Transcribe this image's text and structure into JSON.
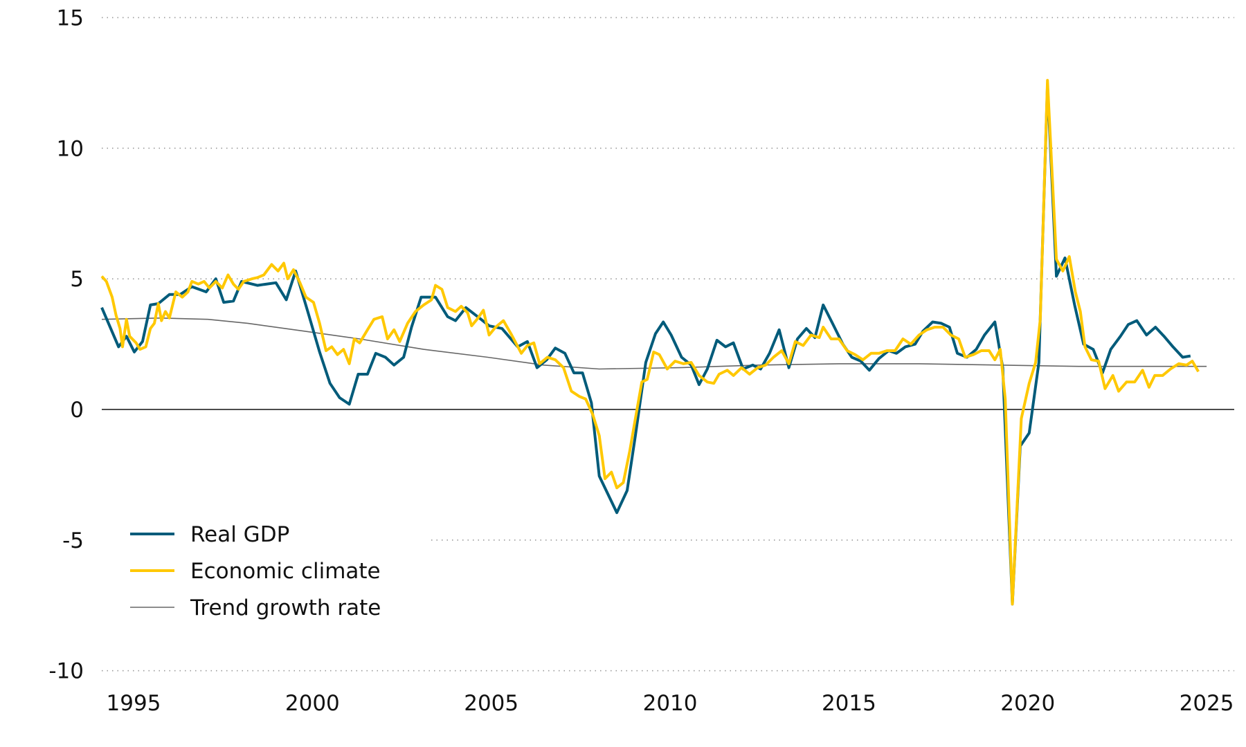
{
  "chart_data": {
    "type": "line",
    "title": "",
    "xlabel": "",
    "ylabel": "",
    "xlim": [
      1994.1,
      2025.8
    ],
    "ylim": [
      -10,
      15
    ],
    "x_ticks": [
      1995,
      2000,
      2005,
      2010,
      2015,
      2020,
      2025
    ],
    "x_tick_labels": [
      "1995",
      "2000",
      "2005",
      "2010",
      "2015",
      "2020",
      "2025"
    ],
    "y_ticks": [
      15,
      10,
      5,
      0,
      -5,
      -10
    ],
    "y_tick_labels": [
      "15",
      "10",
      "5",
      "0",
      "-5",
      "-10"
    ],
    "grid": "horizontal dotted",
    "legend_position": "bottom-left",
    "series": [
      {
        "name": "Real GDP",
        "color": "#005b7a",
        "x": [
          1994.11,
          1994.58,
          1994.8,
          1995.02,
          1995.25,
          1995.47,
          1995.69,
          1996.0,
          1996.3,
          1996.63,
          1997.03,
          1997.3,
          1997.52,
          1997.79,
          1998.02,
          1998.46,
          1998.98,
          1999.27,
          1999.53,
          1999.87,
          2000.2,
          2000.49,
          2000.76,
          2001.03,
          2001.28,
          2001.54,
          2001.77,
          2002.04,
          2002.28,
          2002.55,
          2002.77,
          2003.04,
          2003.44,
          2003.78,
          2004.0,
          2004.29,
          2004.67,
          2004.94,
          2005.3,
          2005.74,
          2006.01,
          2006.28,
          2006.55,
          2006.79,
          2007.06,
          2007.31,
          2007.55,
          2007.8,
          2008.02,
          2008.51,
          2008.8,
          2009.03,
          2009.32,
          2009.59,
          2009.81,
          2010.03,
          2010.32,
          2010.59,
          2010.81,
          2011.04,
          2011.31,
          2011.55,
          2011.77,
          2012.04,
          2012.31,
          2012.53,
          2012.78,
          2013.05,
          2013.32,
          2013.56,
          2013.81,
          2014.05,
          2014.28,
          2014.54,
          2014.83,
          2015.08,
          2015.33,
          2015.57,
          2015.84,
          2016.11,
          2016.33,
          2016.58,
          2016.85,
          2017.07,
          2017.34,
          2017.58,
          2017.81,
          2018.03,
          2018.3,
          2018.56,
          2018.79,
          2019.08,
          2019.3,
          2019.57,
          2019.79,
          2020.04,
          2020.31,
          2020.55,
          2020.8,
          2021.04,
          2021.31,
          2021.56,
          2021.83,
          2022.09,
          2022.32,
          2022.59,
          2022.81,
          2023.05,
          2023.32,
          2023.57,
          2023.81,
          2024.06,
          2024.33,
          2024.55
        ],
        "values": [
          3.9,
          2.4,
          2.8,
          2.2,
          2.6,
          4.0,
          4.05,
          4.4,
          4.4,
          4.7,
          4.5,
          5.0,
          4.1,
          4.15,
          4.9,
          4.75,
          4.85,
          4.2,
          5.3,
          3.75,
          2.2,
          1.0,
          0.45,
          0.2,
          1.35,
          1.35,
          2.15,
          2.0,
          1.7,
          2.0,
          3.15,
          4.3,
          4.3,
          3.55,
          3.4,
          3.9,
          3.5,
          3.2,
          3.1,
          2.4,
          2.6,
          1.6,
          1.9,
          2.35,
          2.15,
          1.4,
          1.4,
          0.25,
          -2.55,
          -3.95,
          -3.1,
          -1.0,
          1.8,
          2.9,
          3.35,
          2.85,
          2.0,
          1.7,
          0.95,
          1.55,
          2.65,
          2.4,
          2.55,
          1.55,
          1.7,
          1.55,
          2.15,
          3.05,
          1.6,
          2.7,
          3.1,
          2.75,
          4.0,
          3.3,
          2.5,
          2.0,
          1.85,
          1.5,
          1.95,
          2.25,
          2.15,
          2.4,
          2.5,
          3.0,
          3.35,
          3.3,
          3.15,
          2.15,
          2.0,
          2.3,
          2.85,
          3.35,
          1.6,
          -7.45,
          -1.4,
          -0.9,
          1.8,
          12.45,
          5.1,
          5.8,
          4.0,
          2.5,
          2.3,
          1.4,
          2.3,
          2.8,
          3.25,
          3.4,
          2.85,
          3.15,
          2.8,
          2.4,
          2.0,
          2.05
        ]
      },
      {
        "name": "Economic climate",
        "color": "#ffc800",
        "x": [
          1994.11,
          1994.24,
          1994.4,
          1994.51,
          1994.62,
          1994.69,
          1994.8,
          1994.89,
          1995.07,
          1995.18,
          1995.34,
          1995.47,
          1995.58,
          1995.69,
          1995.78,
          1995.89,
          1996.0,
          1996.18,
          1996.36,
          1996.52,
          1996.63,
          1996.81,
          1996.97,
          1997.12,
          1997.3,
          1997.48,
          1997.64,
          1997.79,
          1997.93,
          1998.08,
          1998.31,
          1998.46,
          1998.64,
          1998.86,
          1999.04,
          1999.2,
          1999.31,
          1999.47,
          1999.65,
          1999.82,
          2000.03,
          2000.2,
          2000.38,
          2000.54,
          2000.7,
          2000.87,
          2001.03,
          2001.17,
          2001.32,
          2001.54,
          2001.72,
          2001.95,
          2002.1,
          2002.28,
          2002.44,
          2002.66,
          2002.88,
          2003.11,
          2003.33,
          2003.44,
          2003.62,
          2003.78,
          2004.0,
          2004.16,
          2004.34,
          2004.45,
          2004.63,
          2004.78,
          2004.94,
          2005.12,
          2005.34,
          2005.57,
          2005.84,
          2006.01,
          2006.19,
          2006.35,
          2006.57,
          2006.79,
          2007.02,
          2007.24,
          2007.46,
          2007.64,
          2007.84,
          2008.02,
          2008.18,
          2008.36,
          2008.51,
          2008.69,
          2008.87,
          2009.03,
          2009.21,
          2009.36,
          2009.54,
          2009.7,
          2009.92,
          2010.14,
          2010.37,
          2010.59,
          2010.81,
          2011.04,
          2011.22,
          2011.37,
          2011.6,
          2011.77,
          2012.0,
          2012.22,
          2012.45,
          2012.67,
          2012.89,
          2013.12,
          2013.32,
          2013.5,
          2013.72,
          2013.94,
          2014.17,
          2014.28,
          2014.5,
          2014.72,
          2014.95,
          2015.17,
          2015.39,
          2015.62,
          2015.84,
          2016.06,
          2016.29,
          2016.51,
          2016.73,
          2016.96,
          2017.18,
          2017.4,
          2017.63,
          2017.85,
          2018.07,
          2018.25,
          2018.48,
          2018.7,
          2018.92,
          2019.08,
          2019.23,
          2019.37,
          2019.57,
          2019.82,
          2020.04,
          2020.22,
          2020.35,
          2020.55,
          2020.8,
          2020.98,
          2021.16,
          2021.33,
          2021.47,
          2021.6,
          2021.78,
          2021.98,
          2022.16,
          2022.38,
          2022.54,
          2022.76,
          2022.99,
          2023.21,
          2023.39,
          2023.55,
          2023.77,
          2023.99,
          2024.22,
          2024.44,
          2024.6,
          2024.77
        ],
        "values": [
          5.1,
          4.9,
          4.3,
          3.6,
          3.1,
          2.4,
          3.45,
          2.8,
          2.55,
          2.3,
          2.4,
          3.1,
          3.3,
          4.05,
          3.4,
          3.75,
          3.5,
          4.5,
          4.3,
          4.5,
          4.9,
          4.8,
          4.9,
          4.65,
          4.9,
          4.65,
          5.15,
          4.8,
          4.6,
          4.9,
          5.0,
          5.05,
          5.15,
          5.55,
          5.3,
          5.6,
          5.0,
          5.35,
          4.85,
          4.3,
          4.1,
          3.3,
          2.25,
          2.4,
          2.1,
          2.3,
          1.75,
          2.7,
          2.55,
          3.05,
          3.45,
          3.55,
          2.7,
          3.05,
          2.6,
          3.3,
          3.75,
          4.0,
          4.2,
          4.75,
          4.6,
          3.9,
          3.75,
          3.95,
          3.7,
          3.2,
          3.5,
          3.8,
          2.85,
          3.15,
          3.4,
          2.85,
          2.15,
          2.45,
          2.55,
          1.75,
          2.0,
          1.9,
          1.6,
          0.7,
          0.5,
          0.4,
          -0.2,
          -1.0,
          -2.65,
          -2.4,
          -3.0,
          -2.8,
          -1.6,
          -0.35,
          1.05,
          1.15,
          2.2,
          2.1,
          1.55,
          1.85,
          1.75,
          1.8,
          1.3,
          1.05,
          1.0,
          1.35,
          1.5,
          1.3,
          1.6,
          1.35,
          1.6,
          1.7,
          2.0,
          2.25,
          1.75,
          2.6,
          2.45,
          2.85,
          2.75,
          3.15,
          2.7,
          2.7,
          2.25,
          2.1,
          1.9,
          2.15,
          2.15,
          2.25,
          2.25,
          2.7,
          2.5,
          2.85,
          3.05,
          3.15,
          3.15,
          2.85,
          2.7,
          2.0,
          2.1,
          2.25,
          2.25,
          1.9,
          2.3,
          0.4,
          -7.45,
          -0.35,
          1.0,
          1.8,
          3.45,
          12.6,
          5.75,
          5.3,
          5.85,
          4.5,
          3.75,
          2.4,
          1.9,
          1.85,
          0.8,
          1.3,
          0.7,
          1.05,
          1.05,
          1.5,
          0.85,
          1.3,
          1.3,
          1.55,
          1.75,
          1.7,
          1.85,
          1.45
        ]
      },
      {
        "name": "Trend growth rate",
        "color": "#666666",
        "x": [
          1994.11,
          1995.74,
          1997.08,
          1998.19,
          1999.76,
          2001.32,
          2003.11,
          2004.9,
          2006.46,
          2008.02,
          2010.26,
          2012.49,
          2014.72,
          2016.96,
          2019.19,
          2021.42,
          2025.0
        ],
        "values": [
          3.45,
          3.5,
          3.45,
          3.3,
          3.0,
          2.7,
          2.3,
          2.0,
          1.7,
          1.55,
          1.6,
          1.7,
          1.75,
          1.75,
          1.7,
          1.65,
          1.65
        ]
      }
    ]
  }
}
